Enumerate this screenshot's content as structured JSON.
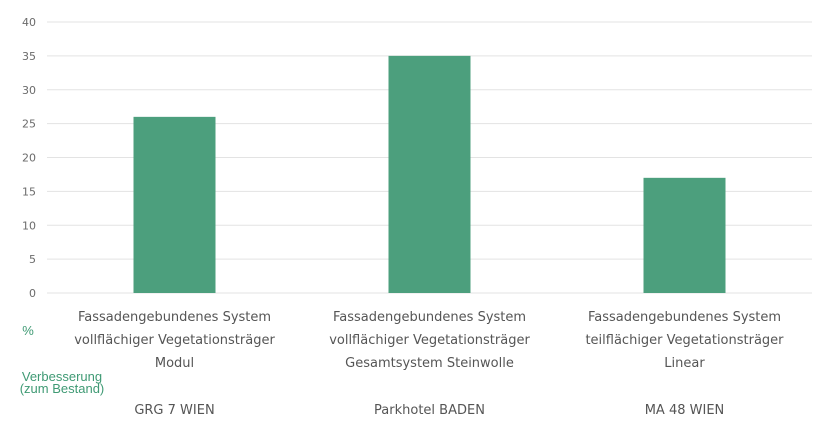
{
  "colors": {
    "bar": "#4c9f7d",
    "grid": "#e3e3e3",
    "axis_label": "#3f9a74"
  },
  "chart_data": {
    "type": "bar",
    "categories": [
      [
        "Fassadengebundenes System",
        "vollflächiger Vegetationsträger",
        "Modul"
      ],
      [
        "Fassadengebundenes System",
        "vollflächiger Vegetationsträger",
        "Gesamtsystem Steinwolle"
      ],
      [
        "Fassadengebundenes System",
        "teilflächiger Vegetationsträger",
        "Linear"
      ]
    ],
    "locations": [
      "GRG 7 WIEN",
      "Parkhotel BADEN",
      "MA 48 WIEN"
    ],
    "values": [
      26,
      35,
      17
    ],
    "yunit": "%",
    "ylabel": [
      "Verbesserung",
      "(zum Bestand)"
    ],
    "ylim": [
      0,
      40
    ],
    "yticks": [
      0,
      5,
      10,
      15,
      20,
      25,
      30,
      35,
      40
    ],
    "grid": true
  }
}
